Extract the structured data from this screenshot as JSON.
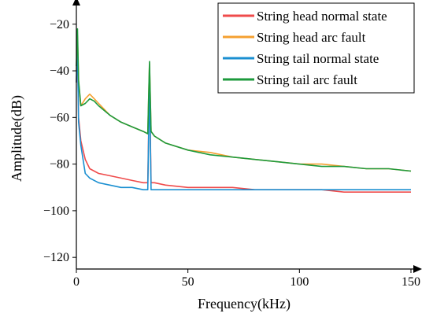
{
  "chart_data": {
    "type": "line",
    "xlabel": "Frequency(kHz)",
    "ylabel": "Amplitude(dB)",
    "xlim": [
      0,
      150
    ],
    "ylim": [
      -125,
      -13
    ],
    "x_ticks": [
      0,
      50,
      100,
      150
    ],
    "y_ticks": [
      -120,
      -100,
      -80,
      -60,
      -40,
      -20
    ],
    "grid": false,
    "legend_position": "top-right",
    "series": [
      {
        "name": "String head normal state",
        "color": "#ef4b4b",
        "x": [
          0,
          0.5,
          1,
          2,
          4,
          6,
          8,
          10,
          15,
          20,
          25,
          30,
          32,
          32.8,
          33.5,
          35,
          40,
          50,
          60,
          70,
          80,
          90,
          100,
          110,
          120,
          130,
          140,
          150
        ],
        "y": [
          -45,
          -30,
          -60,
          -70,
          -78,
          -82,
          -83,
          -84,
          -85,
          -86,
          -87,
          -88,
          -88,
          -44,
          -88,
          -88,
          -89,
          -90,
          -90,
          -90,
          -91,
          -91,
          -91,
          -91,
          -92,
          -92,
          -92,
          -92
        ]
      },
      {
        "name": "String head arc fault",
        "color": "#f5a030",
        "x": [
          0,
          0.5,
          1,
          2,
          4,
          6,
          8,
          10,
          15,
          20,
          25,
          30,
          32,
          32.8,
          33.5,
          35,
          40,
          50,
          60,
          70,
          80,
          90,
          100,
          110,
          120,
          130,
          140,
          150
        ],
        "y": [
          -40,
          -25,
          -45,
          -55,
          -52,
          -50,
          -52,
          -54,
          -59,
          -62,
          -64,
          -66,
          -67,
          -37,
          -66,
          -68,
          -71,
          -74,
          -75,
          -77,
          -78,
          -79,
          -80,
          -80,
          -81,
          -82,
          -82,
          -83
        ]
      },
      {
        "name": "String tail normal state",
        "color": "#1a8fd1",
        "x": [
          0,
          0.5,
          1,
          2,
          4,
          6,
          8,
          10,
          15,
          20,
          25,
          30,
          32,
          32.8,
          33.5,
          35,
          40,
          50,
          60,
          70,
          80,
          90,
          100,
          110,
          120,
          130,
          140,
          150
        ],
        "y": [
          -45,
          -28,
          -62,
          -72,
          -84,
          -86,
          -87,
          -88,
          -89,
          -90,
          -90,
          -91,
          -91,
          -45,
          -91,
          -91,
          -91,
          -91,
          -91,
          -91,
          -91,
          -91,
          -91,
          -91,
          -91,
          -91,
          -91,
          -91
        ]
      },
      {
        "name": "String tail arc fault",
        "color": "#1d9a3c",
        "x": [
          0,
          0.5,
          1,
          2,
          4,
          6,
          8,
          10,
          15,
          20,
          25,
          30,
          32,
          32.8,
          33.5,
          35,
          40,
          50,
          60,
          70,
          80,
          90,
          100,
          110,
          120,
          130,
          140,
          150
        ],
        "y": [
          -38,
          -22,
          -44,
          -55,
          -54,
          -52,
          -53,
          -55,
          -59,
          -62,
          -64,
          -66,
          -67,
          -36,
          -66,
          -68,
          -71,
          -74,
          -76,
          -77,
          -78,
          -79,
          -80,
          -81,
          -81,
          -82,
          -82,
          -83
        ]
      }
    ]
  }
}
